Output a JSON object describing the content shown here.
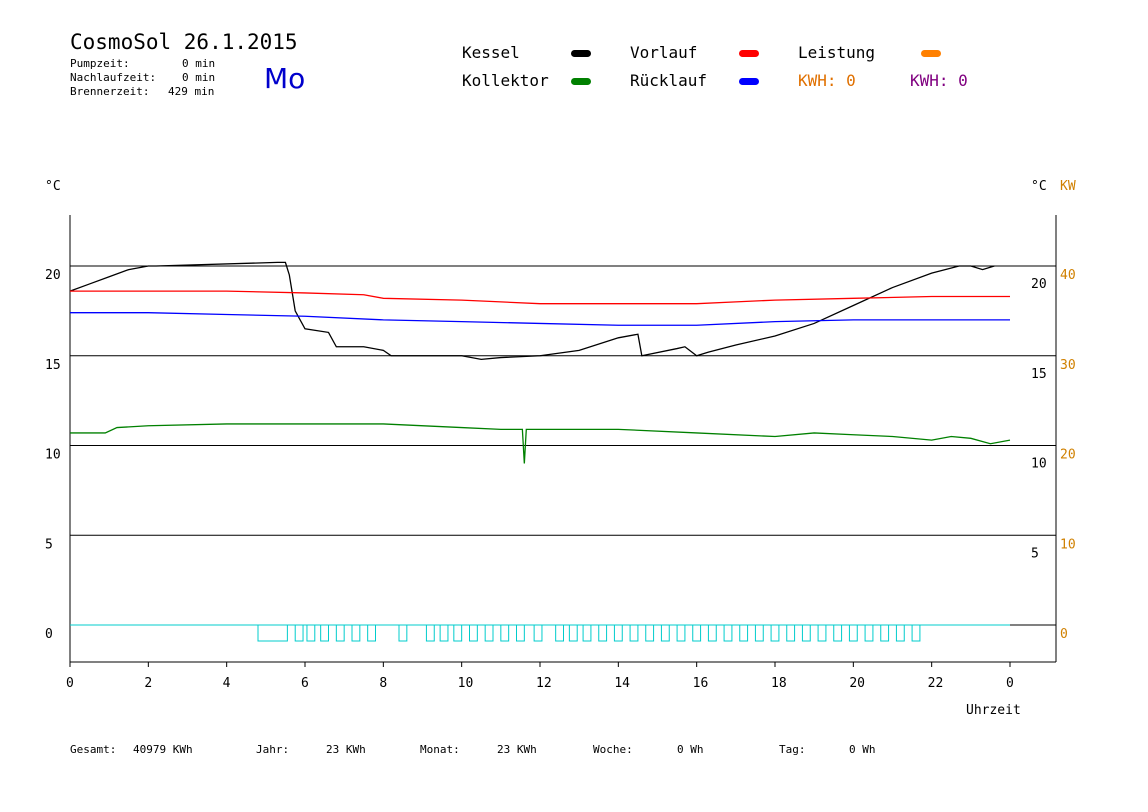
{
  "header": {
    "title": "CosmoSol 26.1.2015",
    "day": "Mo",
    "stats": [
      {
        "label": "Pumpzeit:",
        "value": "0 min"
      },
      {
        "label": "Nachlaufzeit:",
        "value": "0 min"
      },
      {
        "label": "Brennerzeit:",
        "value": "429 min"
      }
    ]
  },
  "legend": {
    "kessel": {
      "label": "Kessel",
      "color": "#000000"
    },
    "vorlauf": {
      "label": "Vorlauf",
      "color": "#ff0000"
    },
    "leistung": {
      "label": "Leistung",
      "color": "#ff8000"
    },
    "kollektor": {
      "label": "Kollektor",
      "color": "#008000"
    },
    "ruecklauf": {
      "label": "Rücklauf",
      "color": "#0000ff"
    },
    "kwh1": "KWH: 0",
    "kwh2": "KWH: 0"
  },
  "colors": {
    "kwh1": "#e07000",
    "kwh2": "#800080",
    "pump": "#00cccc",
    "kw_axis": "#d08000"
  },
  "footer": {
    "gesamt_label": "Gesamt:",
    "gesamt_value": "40979 KWh",
    "jahr_label": "Jahr:",
    "jahr_value": "23 KWh",
    "monat_label": "Monat:",
    "monat_value": "23 KWh",
    "woche_label": "Woche:",
    "woche_value": "0 Wh",
    "tag_label": "Tag:",
    "tag_value": "0 Wh"
  },
  "chart_data": {
    "type": "line",
    "xlabel": "Uhrzeit",
    "ylabel_left": "°C",
    "ylabel_right": "°C",
    "ylabel_right2": "KW",
    "ylim": [
      -2,
      22
    ],
    "yticks_left": [
      "0",
      "5",
      "10",
      "15",
      "20"
    ],
    "yticks_right": [
      "5",
      "10",
      "15",
      "20"
    ],
    "yticks_kw": [
      "0",
      "10",
      "20",
      "30",
      "40"
    ],
    "xticks": [
      "0",
      "2",
      "4",
      "6",
      "8",
      "10",
      "12",
      "14",
      "16",
      "18",
      "20",
      "22",
      "0"
    ],
    "grid_y": [
      0,
      5,
      10,
      15,
      20
    ],
    "series": [
      {
        "name": "Kessel",
        "color": "#000000",
        "x": [
          0,
          0.5,
          1,
          1.5,
          2,
          2.2,
          5.3,
          5.5,
          5.6,
          5.75,
          6.0,
          6.6,
          6.8,
          7.5,
          8.0,
          8.2,
          9,
          10,
          10.5,
          11,
          12,
          13,
          14,
          14.5,
          14.6,
          15.5,
          15.7,
          16.0,
          16.3,
          17,
          18,
          19,
          20,
          21,
          22,
          22.7,
          23.0,
          23.3,
          23.6
        ],
        "y": [
          18.6,
          19.0,
          19.4,
          19.8,
          20.0,
          20.0,
          20.2,
          20.2,
          19.5,
          17.5,
          16.5,
          16.3,
          15.5,
          15.5,
          15.3,
          15.0,
          15.0,
          15.0,
          14.8,
          14.9,
          15.0,
          15.3,
          16.0,
          16.2,
          15.0,
          15.4,
          15.5,
          15.0,
          15.2,
          15.6,
          16.1,
          16.8,
          17.8,
          18.8,
          19.6,
          20.0,
          20.0,
          19.8,
          20.0
        ]
      },
      {
        "name": "Vorlauf",
        "color": "#ff0000",
        "x": [
          0,
          2,
          4,
          6,
          7.5,
          8,
          10,
          11,
          12,
          14,
          16,
          17,
          18,
          20,
          22,
          24
        ],
        "y": [
          18.6,
          18.6,
          18.6,
          18.5,
          18.4,
          18.2,
          18.1,
          18.0,
          17.9,
          17.9,
          17.9,
          18.0,
          18.1,
          18.2,
          18.3,
          18.3
        ]
      },
      {
        "name": "Rücklauf",
        "color": "#0000ff",
        "x": [
          0,
          2,
          4,
          6,
          8,
          10,
          12,
          14,
          16,
          18,
          20,
          22,
          24
        ],
        "y": [
          17.4,
          17.4,
          17.3,
          17.2,
          17.0,
          16.9,
          16.8,
          16.7,
          16.7,
          16.9,
          17.0,
          17.0,
          17.0
        ]
      },
      {
        "name": "Kollektor",
        "color": "#008000",
        "x": [
          0,
          0.9,
          1.2,
          2,
          4,
          6,
          8,
          10,
          11,
          11.55,
          11.6,
          11.65,
          12,
          14,
          16,
          18,
          19,
          20,
          21,
          22,
          22.5,
          23,
          23.5,
          24
        ],
        "y": [
          10.7,
          10.7,
          11.0,
          11.1,
          11.2,
          11.2,
          11.2,
          11.0,
          10.9,
          10.9,
          9.0,
          10.9,
          10.9,
          10.9,
          10.7,
          10.5,
          10.7,
          10.6,
          10.5,
          10.3,
          10.5,
          10.4,
          10.1,
          10.3
        ]
      }
    ],
    "pump_pulses_start": [
      4.8,
      5.75,
      6.05,
      6.4,
      6.8,
      7.2,
      7.6,
      8.4,
      9.1,
      9.45,
      9.8,
      10.2,
      10.6,
      11.0,
      11.4,
      11.85,
      12.4,
      12.75,
      13.1,
      13.5,
      13.9,
      14.3,
      14.7,
      15.1,
      15.5,
      15.9,
      16.3,
      16.7,
      17.1,
      17.5,
      17.9,
      18.3,
      18.7,
      19.1,
      19.5,
      19.9,
      20.3,
      20.7,
      21.1,
      21.5
    ],
    "pump_pulses_width": [
      0.75,
      0.2,
      0.2,
      0.2,
      0.2,
      0.2,
      0.2,
      0.2,
      0.2,
      0.2,
      0.2,
      0.2,
      0.2,
      0.2,
      0.2,
      0.2,
      0.2,
      0.2,
      0.2,
      0.2,
      0.2,
      0.2,
      0.2,
      0.2,
      0.2,
      0.2,
      0.2,
      0.2,
      0.2,
      0.2,
      0.2,
      0.2,
      0.2,
      0.2,
      0.2,
      0.2,
      0.2,
      0.2,
      0.2,
      0.2
    ]
  }
}
